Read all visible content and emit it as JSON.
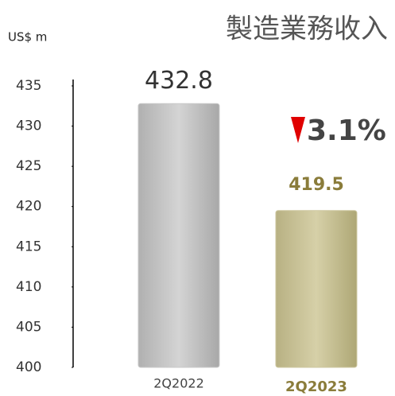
{
  "chart_data": {
    "type": "bar",
    "title": "製造業務收入",
    "y_label": "US$ m",
    "categories": [
      "2Q2022",
      "2Q2023"
    ],
    "values": [
      432.8,
      419.5
    ],
    "colors": [
      "#c9c9c9",
      "#cdc79f"
    ],
    "ylim": [
      400,
      435
    ],
    "yticks": [
      400,
      405,
      410,
      415,
      420,
      425,
      430,
      435
    ],
    "annotation": "3.1%"
  }
}
